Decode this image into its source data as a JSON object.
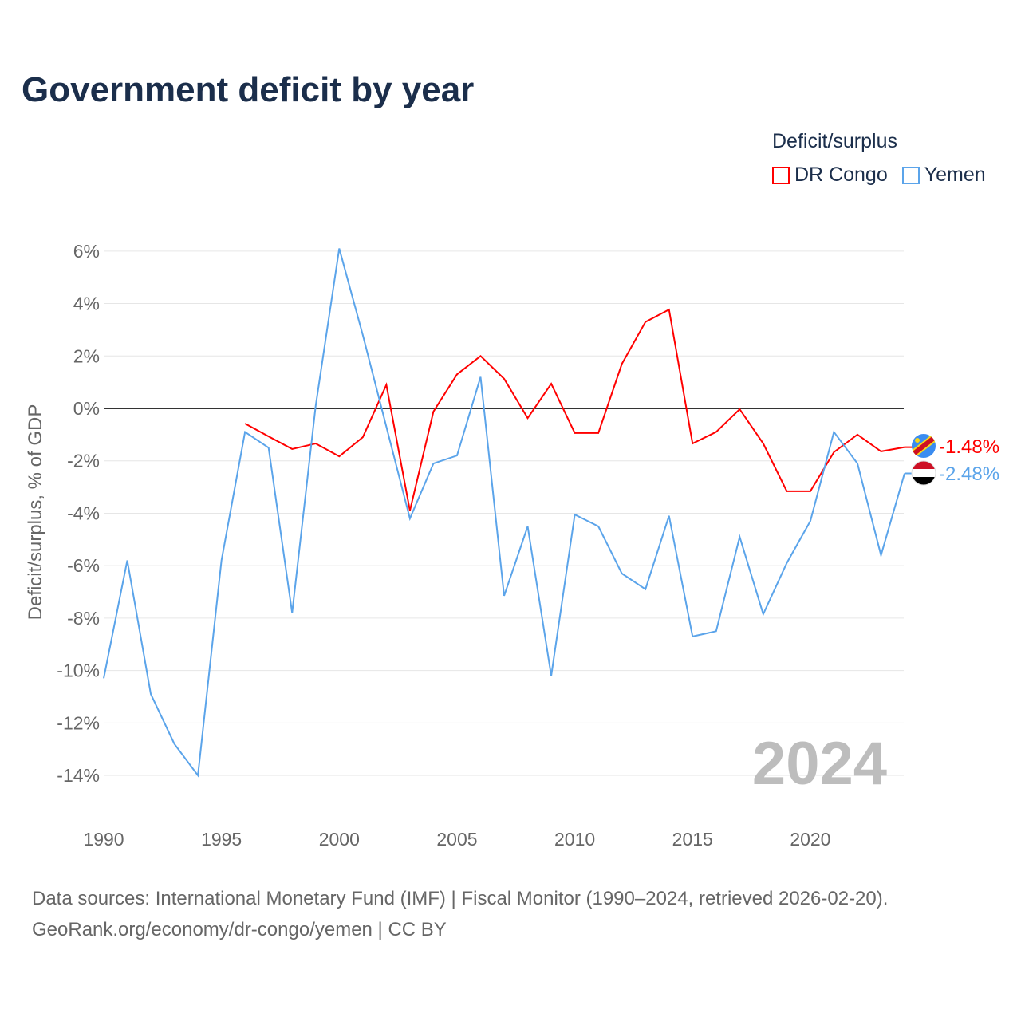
{
  "chart_data": {
    "type": "line",
    "title": "Government deficit by year",
    "ylabel": "Deficit/surplus, % of GDP",
    "xlabel": "",
    "xlim": [
      1990,
      2024
    ],
    "ylim": [
      -15,
      7
    ],
    "xticks": [
      1990,
      1995,
      2000,
      2005,
      2010,
      2015,
      2020
    ],
    "yticks": [
      6,
      4,
      2,
      0,
      -2,
      -4,
      -6,
      -8,
      -10,
      -12,
      -14
    ],
    "ytick_labels": [
      "6%",
      "4%",
      "2%",
      "0%",
      "-2%",
      "-4%",
      "-6%",
      "-8%",
      "-10%",
      "-12%",
      "-14%"
    ],
    "legend_title": "Deficit/surplus",
    "legend_placement": "top-right",
    "year_watermark": "2024",
    "series": [
      {
        "name": "DR Congo",
        "color": "#ff0000",
        "end_label": "-1.48%",
        "x": [
          1996,
          1997,
          1998,
          1999,
          2000,
          2001,
          2002,
          2003,
          2004,
          2005,
          2006,
          2007,
          2008,
          2009,
          2010,
          2011,
          2012,
          2013,
          2014,
          2015,
          2016,
          2017,
          2018,
          2019,
          2020,
          2021,
          2022,
          2023,
          2024
        ],
        "values": [
          -0.58,
          -1.07,
          -1.55,
          -1.34,
          -1.83,
          -1.1,
          0.9,
          -3.9,
          -0.12,
          1.3,
          2.0,
          1.13,
          -0.37,
          0.94,
          -0.94,
          -0.94,
          1.7,
          3.3,
          3.77,
          -1.34,
          -0.9,
          -0.03,
          -1.34,
          -3.16,
          -3.16,
          -1.67,
          -1.0,
          -1.64,
          -1.48
        ]
      },
      {
        "name": "Yemen",
        "color": "#5ba4ea",
        "end_label": "-2.48%",
        "x": [
          1990,
          1991,
          1992,
          1993,
          1994,
          1995,
          1996,
          1997,
          1998,
          1999,
          2000,
          2001,
          2002,
          2003,
          2004,
          2005,
          2006,
          2007,
          2008,
          2009,
          2010,
          2011,
          2012,
          2013,
          2014,
          2015,
          2016,
          2017,
          2018,
          2019,
          2020,
          2021,
          2022,
          2023,
          2024
        ],
        "values": [
          -10.3,
          -5.8,
          -10.9,
          -12.8,
          -14.0,
          -5.8,
          -0.9,
          -1.5,
          -7.8,
          0.1,
          6.1,
          2.8,
          -0.7,
          -4.2,
          -2.1,
          -1.8,
          1.2,
          -7.15,
          -4.5,
          -10.2,
          -4.05,
          -4.5,
          -6.3,
          -6.9,
          -4.1,
          -8.7,
          -8.5,
          -4.9,
          -7.85,
          -5.9,
          -4.3,
          -0.9,
          -2.1,
          -5.6,
          -2.48
        ]
      }
    ]
  },
  "footer": {
    "sources": "Data sources: International Monetary Fund (IMF) | Fiscal Monitor (1990–2024, retrieved 2026-02-20).",
    "credit": "GeoRank.org/economy/dr-congo/yemen | CC BY"
  }
}
